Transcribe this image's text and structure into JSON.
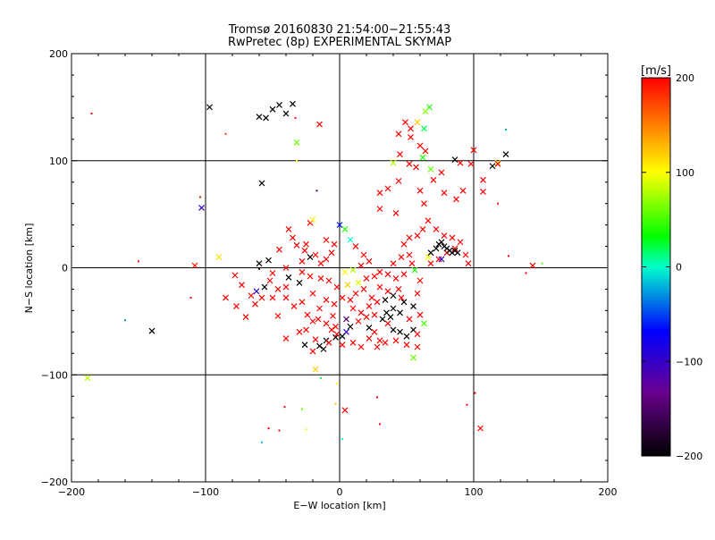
{
  "chart_data": {
    "type": "scatter",
    "title": "Tromsø 20160830 21:54:00−21:55:43",
    "subtitle": "RwPretec (8p) EXPERIMENTAL SKYMAP",
    "xlabel": "E−W location [km]",
    "ylabel": "N−S location [km]",
    "xlim": [
      -200,
      200
    ],
    "ylim": [
      -200,
      200
    ],
    "x_ticks": [
      -200,
      -100,
      0,
      100,
      200
    ],
    "y_ticks": [
      -200,
      -100,
      0,
      100,
      200
    ],
    "x_tick_labels": [
      "−200",
      "−100",
      "0",
      "100",
      "200"
    ],
    "y_tick_labels": [
      "−200",
      "−100",
      "0",
      "100",
      "200"
    ],
    "grid": true,
    "grid_lines_at": [
      -100,
      0,
      100
    ],
    "colorbar": {
      "unit_label": "[m/s]",
      "range": [
        -200,
        200
      ],
      "ticks": [
        200,
        100,
        0,
        -100,
        -200
      ],
      "tick_labels": [
        "200",
        "100",
        "0",
        "−100",
        "−200"
      ],
      "colormap": [
        "#000000",
        "#6a0090",
        "#0000ff",
        "#00ffff",
        "#00ff00",
        "#ffff00",
        "#ff0000"
      ]
    },
    "markers": {
      "large": "x",
      "small": "dot"
    },
    "points": [
      [
        -185,
        144,
        200,
        0
      ],
      [
        -97,
        150,
        -200,
        1
      ],
      [
        -85,
        125,
        180,
        0
      ],
      [
        -60,
        141,
        -200,
        1
      ],
      [
        -55,
        140,
        -200,
        1
      ],
      [
        -45,
        152,
        -200,
        1
      ],
      [
        -50,
        148,
        -200,
        1
      ],
      [
        -35,
        153,
        -200,
        1
      ],
      [
        -15,
        134,
        200,
        1
      ],
      [
        -33,
        140,
        200,
        0
      ],
      [
        -40,
        144,
        -200,
        1
      ],
      [
        -32,
        117,
        60,
        1
      ],
      [
        -32,
        100,
        100,
        0
      ],
      [
        -58,
        79,
        -200,
        1
      ],
      [
        -17,
        72,
        -150,
        0
      ],
      [
        -104,
        66,
        200,
        0
      ],
      [
        -103,
        56,
        -100,
        1
      ],
      [
        -90,
        10,
        110,
        1
      ],
      [
        -108,
        2,
        190,
        1
      ],
      [
        -150,
        6,
        200,
        0
      ],
      [
        -160,
        -49,
        -30,
        0
      ],
      [
        -140,
        -59,
        -200,
        1
      ],
      [
        -111,
        -28,
        200,
        0
      ],
      [
        -188,
        -103,
        80,
        1
      ],
      [
        -58,
        -163,
        -20,
        0
      ],
      [
        -45,
        -152,
        200,
        0
      ],
      [
        -28,
        -132,
        60,
        0
      ],
      [
        -41,
        -130,
        200,
        0
      ],
      [
        -14,
        -103,
        20,
        0
      ],
      [
        -18,
        -95,
        120,
        1
      ],
      [
        -2,
        -108,
        100,
        0
      ],
      [
        4,
        -133,
        200,
        1
      ],
      [
        2,
        -160,
        0,
        0
      ],
      [
        28,
        -121,
        200,
        0
      ],
      [
        -3,
        -127,
        120,
        0
      ],
      [
        -25,
        -151,
        100,
        0
      ],
      [
        -53,
        -150,
        200,
        0
      ],
      [
        30,
        -146,
        200,
        0
      ],
      [
        55,
        -84,
        60,
        1
      ],
      [
        95,
        -128,
        200,
        0
      ],
      [
        101,
        -117,
        200,
        0
      ],
      [
        105,
        -150,
        200,
        1
      ],
      [
        139,
        -5,
        200,
        0
      ],
      [
        144,
        2,
        200,
        1
      ],
      [
        151,
        4,
        60,
        0
      ],
      [
        126,
        11,
        200,
        0
      ],
      [
        118,
        60,
        200,
        0
      ],
      [
        118,
        98,
        90,
        1
      ],
      [
        114,
        95,
        -200,
        1
      ],
      [
        124,
        106,
        -200,
        1
      ],
      [
        124,
        129,
        -20,
        0
      ],
      [
        118,
        97,
        200,
        1
      ],
      [
        67,
        150,
        40,
        1
      ],
      [
        64,
        146,
        70,
        1
      ],
      [
        58,
        136,
        120,
        1
      ],
      [
        49,
        136,
        200,
        1
      ],
      [
        53,
        130,
        200,
        1
      ],
      [
        44,
        125,
        200,
        1
      ],
      [
        63,
        130,
        20,
        1
      ],
      [
        53,
        122,
        200,
        1
      ],
      [
        60,
        114,
        200,
        1
      ],
      [
        57,
        94,
        200,
        1
      ],
      [
        52,
        97,
        200,
        1
      ],
      [
        45,
        106,
        200,
        1
      ],
      [
        64,
        109,
        200,
        1
      ],
      [
        86,
        101,
        -200,
        1
      ],
      [
        90,
        98,
        200,
        1
      ],
      [
        100,
        110,
        200,
        1
      ],
      [
        98,
        97,
        200,
        1
      ],
      [
        107,
        71,
        200,
        1
      ],
      [
        107,
        82,
        200,
        1
      ],
      [
        76,
        89,
        200,
        1
      ],
      [
        62,
        103,
        40,
        1
      ],
      [
        40,
        98,
        80,
        1
      ],
      [
        70,
        82,
        200,
        1
      ],
      [
        60,
        72,
        200,
        1
      ],
      [
        92,
        72,
        200,
        1
      ],
      [
        87,
        64,
        200,
        1
      ],
      [
        68,
        92,
        60,
        1
      ],
      [
        78,
        70,
        200,
        1
      ],
      [
        63,
        60,
        200,
        1
      ],
      [
        42,
        51,
        200,
        1
      ],
      [
        30,
        70,
        200,
        1
      ],
      [
        44,
        81,
        200,
        1
      ],
      [
        36,
        74,
        200,
        1
      ],
      [
        30,
        55,
        200,
        1
      ],
      [
        -22,
        42,
        200,
        1
      ],
      [
        -20,
        45,
        100,
        1
      ],
      [
        -38,
        36,
        200,
        1
      ],
      [
        -32,
        21,
        200,
        1
      ],
      [
        -35,
        28,
        200,
        1
      ],
      [
        -25,
        22,
        200,
        1
      ],
      [
        -45,
        17,
        200,
        1
      ],
      [
        -28,
        6,
        200,
        1
      ],
      [
        -60,
        4,
        -200,
        1
      ],
      [
        -53,
        7,
        -200,
        1
      ],
      [
        -60,
        -1,
        -200,
        0
      ],
      [
        -40,
        0,
        200,
        1
      ],
      [
        -50,
        -5,
        200,
        1
      ],
      [
        -38,
        -9,
        -200,
        1
      ],
      [
        -30,
        -14,
        -200,
        1
      ],
      [
        -78,
        -7,
        200,
        1
      ],
      [
        -73,
        -16,
        200,
        1
      ],
      [
        -85,
        -28,
        200,
        1
      ],
      [
        -77,
        -36,
        200,
        1
      ],
      [
        -63,
        -34,
        200,
        1
      ],
      [
        -70,
        -46,
        200,
        1
      ],
      [
        -46,
        -45,
        200,
        1
      ],
      [
        -50,
        -28,
        200,
        1
      ],
      [
        -40,
        -28,
        200,
        1
      ],
      [
        -20,
        -50,
        200,
        1
      ],
      [
        -25,
        -58,
        200,
        1
      ],
      [
        -30,
        -60,
        200,
        1
      ],
      [
        -40,
        -66,
        200,
        1
      ],
      [
        -18,
        -67,
        200,
        1
      ],
      [
        -15,
        -73,
        -200,
        1
      ],
      [
        -10,
        -68,
        -200,
        1
      ],
      [
        -3,
        -65,
        -200,
        1
      ],
      [
        5,
        -60,
        -100,
        1
      ],
      [
        2,
        -64,
        -200,
        1
      ],
      [
        8,
        -55,
        -200,
        1
      ],
      [
        -3,
        -55,
        200,
        1
      ],
      [
        22,
        -56,
        -200,
        1
      ],
      [
        26,
        -60,
        200,
        1
      ],
      [
        36,
        -52,
        200,
        1
      ],
      [
        30,
        -68,
        200,
        1
      ],
      [
        40,
        -58,
        -200,
        1
      ],
      [
        45,
        -60,
        -200,
        1
      ],
      [
        50,
        -64,
        -200,
        1
      ],
      [
        55,
        -58,
        -200,
        1
      ],
      [
        58,
        -62,
        200,
        1
      ],
      [
        52,
        -48,
        200,
        1
      ],
      [
        60,
        -44,
        200,
        1
      ],
      [
        63,
        -52,
        50,
        1
      ],
      [
        45,
        -42,
        -200,
        1
      ],
      [
        40,
        -38,
        -200,
        1
      ],
      [
        35,
        -42,
        -200,
        1
      ],
      [
        48,
        -32,
        -200,
        1
      ],
      [
        55,
        -36,
        -200,
        1
      ],
      [
        58,
        -24,
        200,
        1
      ],
      [
        60,
        -12,
        200,
        1
      ],
      [
        44,
        -20,
        200,
        1
      ],
      [
        36,
        -22,
        200,
        1
      ],
      [
        30,
        -18,
        200,
        1
      ],
      [
        24,
        -28,
        200,
        1
      ],
      [
        18,
        -20,
        200,
        1
      ],
      [
        12,
        -24,
        200,
        1
      ],
      [
        8,
        -30,
        200,
        1
      ],
      [
        2,
        -28,
        200,
        1
      ],
      [
        -4,
        -34,
        200,
        1
      ],
      [
        -10,
        -30,
        200,
        1
      ],
      [
        -15,
        -38,
        200,
        1
      ],
      [
        -20,
        -24,
        200,
        1
      ],
      [
        10,
        -38,
        200,
        1
      ],
      [
        16,
        -42,
        200,
        1
      ],
      [
        22,
        -36,
        200,
        1
      ],
      [
        28,
        -32,
        200,
        1
      ],
      [
        34,
        -30,
        -200,
        1
      ],
      [
        40,
        -26,
        -200,
        1
      ],
      [
        46,
        -28,
        200,
        1
      ],
      [
        -5,
        -45,
        200,
        1
      ],
      [
        5,
        -48,
        -150,
        1
      ],
      [
        14,
        -50,
        200,
        1
      ],
      [
        20,
        -46,
        200,
        1
      ],
      [
        26,
        -44,
        200,
        1
      ],
      [
        32,
        -48,
        -200,
        1
      ],
      [
        38,
        -46,
        -200,
        1
      ],
      [
        -2,
        -18,
        200,
        1
      ],
      [
        6,
        -16,
        120,
        1
      ],
      [
        14,
        -14,
        90,
        1
      ],
      [
        20,
        -10,
        200,
        1
      ],
      [
        26,
        -8,
        200,
        1
      ],
      [
        30,
        -4,
        200,
        1
      ],
      [
        36,
        -6,
        200,
        1
      ],
      [
        42,
        -10,
        200,
        1
      ],
      [
        48,
        -6,
        200,
        1
      ],
      [
        -8,
        -12,
        200,
        1
      ],
      [
        -14,
        -10,
        200,
        1
      ],
      [
        -22,
        -8,
        200,
        1
      ],
      [
        -28,
        -4,
        200,
        1
      ],
      [
        4,
        -4,
        100,
        1
      ],
      [
        10,
        -2,
        80,
        1
      ],
      [
        16,
        2,
        200,
        1
      ],
      [
        22,
        6,
        200,
        1
      ],
      [
        18,
        12,
        200,
        1
      ],
      [
        12,
        20,
        200,
        1
      ],
      [
        8,
        26,
        0,
        1
      ],
      [
        40,
        4,
        200,
        1
      ],
      [
        46,
        10,
        200,
        1
      ],
      [
        52,
        12,
        200,
        1
      ],
      [
        54,
        4,
        200,
        1
      ],
      [
        48,
        22,
        200,
        1
      ],
      [
        52,
        28,
        200,
        1
      ],
      [
        58,
        30,
        200,
        1
      ],
      [
        62,
        36,
        200,
        1
      ],
      [
        66,
        44,
        200,
        1
      ],
      [
        72,
        36,
        200,
        1
      ],
      [
        78,
        30,
        200,
        1
      ],
      [
        84,
        28,
        200,
        1
      ],
      [
        90,
        24,
        200,
        1
      ],
      [
        86,
        18,
        200,
        1
      ],
      [
        80,
        14,
        200,
        1
      ],
      [
        74,
        8,
        200,
        1
      ],
      [
        68,
        4,
        200,
        1
      ],
      [
        94,
        12,
        200,
        1
      ],
      [
        96,
        4,
        200,
        1
      ],
      [
        84,
        14,
        -200,
        1
      ],
      [
        82,
        16,
        -200,
        1
      ],
      [
        80,
        18,
        -200,
        1
      ],
      [
        86,
        16,
        -200,
        1
      ],
      [
        88,
        14,
        -200,
        1
      ],
      [
        78,
        20,
        -200,
        1
      ],
      [
        76,
        24,
        -200,
        1
      ],
      [
        74,
        22,
        -200,
        1
      ],
      [
        72,
        18,
        -200,
        1
      ],
      [
        76,
        8,
        -100,
        1
      ],
      [
        68,
        14,
        -200,
        1
      ],
      [
        66,
        10,
        100,
        1
      ],
      [
        56,
        -2,
        40,
        1
      ],
      [
        0,
        40,
        -60,
        1
      ],
      [
        4,
        36,
        40,
        1
      ],
      [
        -10,
        26,
        200,
        1
      ],
      [
        -4,
        22,
        200,
        1
      ],
      [
        -6,
        14,
        200,
        1
      ],
      [
        -10,
        8,
        200,
        1
      ],
      [
        -14,
        4,
        200,
        1
      ],
      [
        -18,
        12,
        200,
        1
      ],
      [
        -22,
        10,
        -200,
        1
      ],
      [
        -26,
        16,
        200,
        1
      ],
      [
        -40,
        -18,
        200,
        1
      ],
      [
        -46,
        -20,
        200,
        1
      ],
      [
        -52,
        -12,
        200,
        1
      ],
      [
        -56,
        -18,
        -200,
        1
      ],
      [
        -62,
        -22,
        -100,
        1
      ],
      [
        -66,
        -26,
        200,
        1
      ],
      [
        -58,
        -28,
        200,
        1
      ],
      [
        -34,
        -36,
        200,
        1
      ],
      [
        -28,
        -32,
        200,
        1
      ],
      [
        -24,
        -44,
        200,
        1
      ],
      [
        -16,
        -48,
        200,
        1
      ],
      [
        -10,
        -52,
        200,
        1
      ],
      [
        -6,
        -58,
        200,
        1
      ],
      [
        -2,
        -62,
        200,
        1
      ],
      [
        -26,
        -72,
        -200,
        1
      ],
      [
        -20,
        -78,
        200,
        1
      ],
      [
        -12,
        -76,
        -200,
        1
      ],
      [
        -8,
        -70,
        200,
        1
      ],
      [
        2,
        -72,
        200,
        1
      ],
      [
        10,
        -70,
        200,
        1
      ],
      [
        16,
        -74,
        200,
        1
      ],
      [
        22,
        -66,
        200,
        1
      ],
      [
        28,
        -74,
        200,
        1
      ],
      [
        34,
        -70,
        200,
        1
      ],
      [
        42,
        -68,
        200,
        1
      ],
      [
        50,
        -72,
        200,
        1
      ],
      [
        58,
        -74,
        200,
        1
      ]
    ]
  }
}
